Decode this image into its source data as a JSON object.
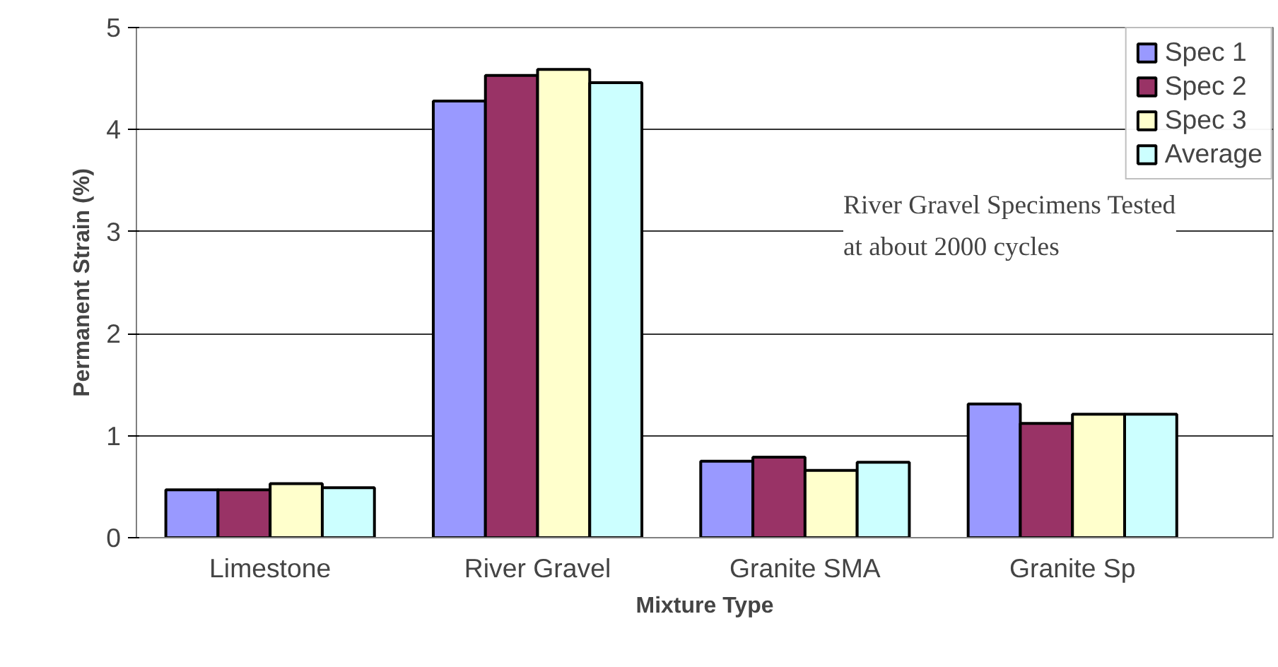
{
  "chart_data": {
    "type": "bar",
    "xlabel": "Mixture Type",
    "ylabel": "Permanent Strain (%)",
    "categories": [
      "Limestone",
      "River Gravel",
      "Granite SMA",
      "Granite Sp"
    ],
    "series": [
      {
        "name": "Spec 1",
        "color": "#9999ff",
        "values": [
          0.47,
          4.28,
          0.75,
          1.31
        ]
      },
      {
        "name": "Spec 2",
        "color": "#993366",
        "values": [
          0.47,
          4.53,
          0.79,
          1.12
        ]
      },
      {
        "name": "Spec 3",
        "color": "#ffffcc",
        "values": [
          0.53,
          4.59,
          0.66,
          1.21
        ]
      },
      {
        "name": "Average",
        "color": "#ccffff",
        "values": [
          0.49,
          4.46,
          0.74,
          1.21
        ]
      }
    ],
    "ylim": [
      0,
      5
    ],
    "yticks": [
      0,
      1,
      2,
      3,
      4,
      5
    ],
    "grid": "y",
    "legend": "top right",
    "annotations": [
      "River Gravel Specimens Tested\nat about 2000 cycles"
    ]
  }
}
